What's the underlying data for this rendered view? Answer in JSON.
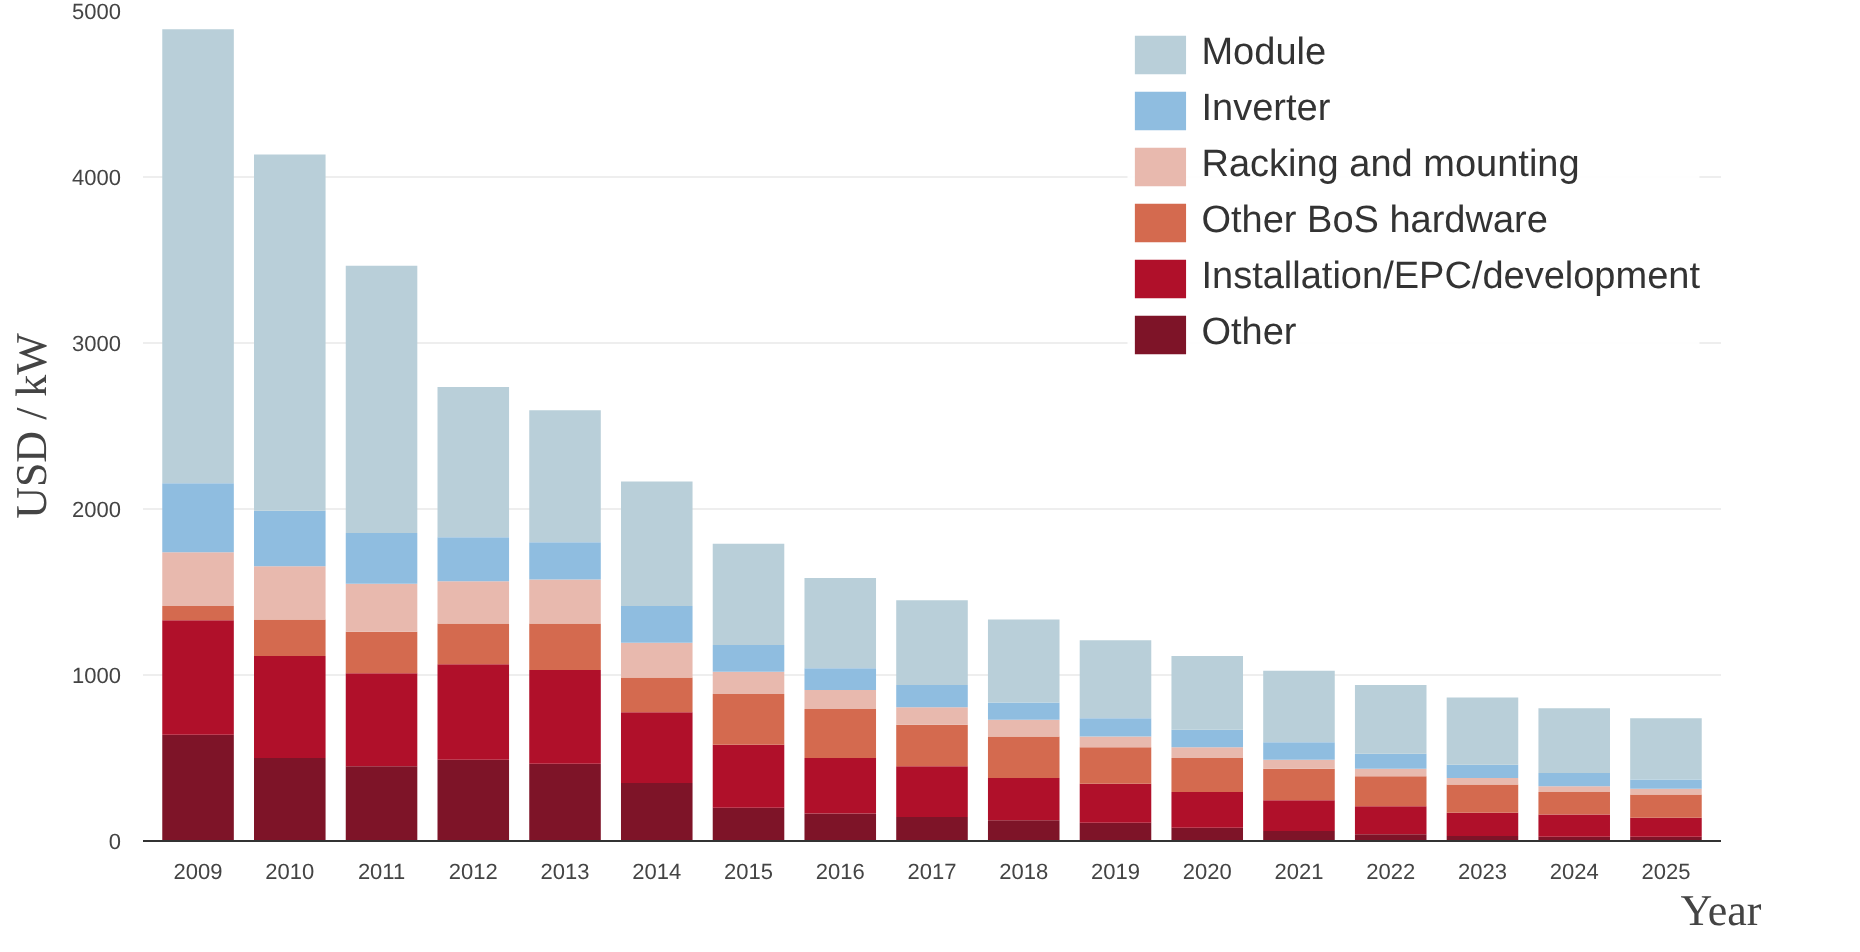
{
  "chart_data": {
    "type": "bar",
    "stacked": true,
    "ylabel": "USD / kW",
    "xlabel": "Year",
    "categories": [
      "2009",
      "2010",
      "2011",
      "2012",
      "2013",
      "2014",
      "2015",
      "2016",
      "2017",
      "2018",
      "2019",
      "2020",
      "2021",
      "2022",
      "2023",
      "2024",
      "2025"
    ],
    "series": [
      {
        "name": "Other",
        "color": "#7e1428",
        "values": [
          640,
          500,
          450,
          490,
          465,
          350,
          200,
          165,
          145,
          125,
          110,
          80,
          60,
          40,
          30,
          25,
          25
        ]
      },
      {
        "name": "Installation/EPC/development",
        "color": "#b0102a",
        "values": [
          690,
          615,
          560,
          575,
          565,
          425,
          380,
          335,
          305,
          255,
          235,
          215,
          185,
          170,
          140,
          135,
          115
        ]
      },
      {
        "name": "Other BoS hardware",
        "color": "#d46a4f",
        "values": [
          85,
          220,
          250,
          245,
          280,
          210,
          305,
          295,
          250,
          250,
          220,
          205,
          190,
          180,
          170,
          135,
          140
        ]
      },
      {
        "name": "Racking and mounting",
        "color": "#e8b9ae",
        "values": [
          325,
          320,
          290,
          255,
          265,
          210,
          135,
          115,
          105,
          100,
          65,
          65,
          55,
          45,
          40,
          35,
          35
        ]
      },
      {
        "name": "Inverter",
        "color": "#8fbde0",
        "values": [
          415,
          335,
          305,
          265,
          225,
          220,
          160,
          130,
          135,
          105,
          110,
          105,
          105,
          90,
          80,
          80,
          55
        ]
      },
      {
        "name": "Module",
        "color": "#b9cfd9",
        "values": [
          2735,
          2145,
          1610,
          905,
          795,
          750,
          610,
          545,
          510,
          500,
          470,
          445,
          430,
          415,
          405,
          390,
          370
        ]
      }
    ],
    "ylim": [
      0,
      5000
    ],
    "yticks": [
      0,
      1000,
      2000,
      3000,
      4000,
      5000
    ],
    "grid": "y",
    "legend": "top right"
  }
}
